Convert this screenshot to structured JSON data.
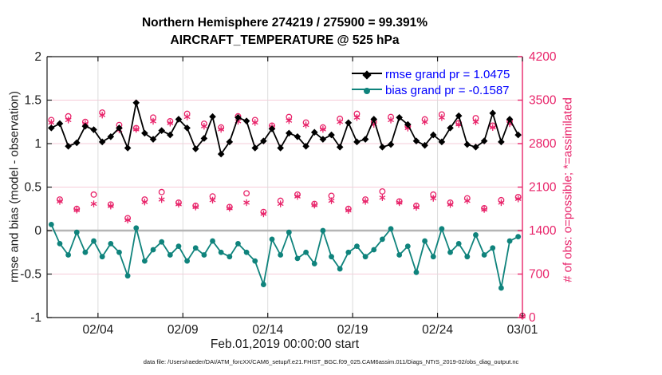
{
  "footer": "data file: /Users/raeder/DAI/ATM_forcXX/CAM6_setup/f.e21.FHIST_BGC.f09_025.CAM6assim.011/Diags_NTrS_2019-02/obs_diag_output.nc",
  "colors": {
    "rmse": "#000000",
    "bias": "#0f837c",
    "obs": "#e8246a",
    "legend_text": "#0000ff",
    "grid_vertical": "#dcdcdc",
    "grid_horizontal": "#f6ccd9",
    "zero_line": "#b5b5b5",
    "axis": "#1a1a1a"
  },
  "chart_data": {
    "type": "line",
    "title_line1": "Northern Hemisphere 274219 / 275900 = 99.391%",
    "title_line2": "AIRCRAFT_TEMPERATURE @ 525 hPa",
    "x_axis": {
      "label": "Feb.01,2019 00:00:00 start",
      "lim": [
        0,
        28
      ],
      "tick_days": [
        3,
        8,
        13,
        18,
        23,
        28
      ],
      "tick_labels": [
        "02/04",
        "02/09",
        "02/14",
        "02/19",
        "02/24",
        "03/01"
      ]
    },
    "y_left": {
      "label": "rmse and bias (model - observation)",
      "lim": [
        -1,
        2
      ],
      "tick_values": [
        2,
        1.5,
        1,
        0.5,
        0,
        -0.5,
        -1
      ],
      "tick_labels": [
        "2",
        "1.5",
        "1",
        "0.5",
        "0",
        "-0.5",
        "-1"
      ]
    },
    "y_right": {
      "label": "# of obs: o=possible; *=assimilated",
      "lim": [
        0,
        4200
      ],
      "tick_values": [
        4200,
        3500,
        2800,
        2100,
        1400,
        700,
        0
      ],
      "tick_labels": [
        "4200",
        "3500",
        "2800",
        "2100",
        "1400",
        "700",
        "0"
      ]
    },
    "grid": true,
    "legend": {
      "position": "top-right-inside",
      "entries": [
        {
          "series": "rmse",
          "label": "rmse grand pr = 1.0475"
        },
        {
          "series": "bias",
          "label": "bias grand pr = -0.1587"
        }
      ]
    },
    "days": [
      0.25,
      0.75,
      1.25,
      1.75,
      2.25,
      2.75,
      3.25,
      3.75,
      4.25,
      4.75,
      5.25,
      5.75,
      6.25,
      6.75,
      7.25,
      7.75,
      8.25,
      8.75,
      9.25,
      9.75,
      10.25,
      10.75,
      11.25,
      11.75,
      12.25,
      12.75,
      13.25,
      13.75,
      14.25,
      14.75,
      15.25,
      15.75,
      16.25,
      16.75,
      17.25,
      17.75,
      18.25,
      18.75,
      19.25,
      19.75,
      20.25,
      20.75,
      21.25,
      21.75,
      22.25,
      22.75,
      23.25,
      23.75,
      24.25,
      24.75,
      25.25,
      25.75,
      26.25,
      26.75,
      27.25,
      27.75,
      28.0
    ],
    "series": [
      {
        "id": "rmse",
        "name": "rmse grand pr",
        "axis": "left",
        "marker": "diamond",
        "color": "#000000",
        "values": [
          1.18,
          1.23,
          0.97,
          1.01,
          1.2,
          1.16,
          1.02,
          1.08,
          1.18,
          0.95,
          1.47,
          1.12,
          1.05,
          1.15,
          1.1,
          1.28,
          1.18,
          0.94,
          1.06,
          1.31,
          0.88,
          1.02,
          1.3,
          1.26,
          0.95,
          1.03,
          1.17,
          0.95,
          1.12,
          1.08,
          0.97,
          1.13,
          1.05,
          1.1,
          0.96,
          1.24,
          1.02,
          1.05,
          1.28,
          0.96,
          0.99,
          1.3,
          1.22,
          1.03,
          0.98,
          1.1,
          1.02,
          1.18,
          1.32,
          0.99,
          0.96,
          1.03,
          1.35,
          1.02,
          1.28,
          1.1,
          null
        ]
      },
      {
        "id": "bias",
        "name": "bias grand pr",
        "axis": "left",
        "marker": "filled-circle",
        "color": "#0f837c",
        "values": [
          0.07,
          -0.15,
          -0.28,
          -0.02,
          -0.25,
          -0.12,
          -0.3,
          -0.15,
          -0.25,
          -0.52,
          0.03,
          -0.35,
          -0.22,
          -0.13,
          -0.28,
          -0.18,
          -0.35,
          -0.2,
          -0.28,
          -0.12,
          -0.25,
          -0.3,
          -0.15,
          -0.25,
          -0.35,
          -0.62,
          -0.1,
          -0.28,
          -0.02,
          -0.32,
          -0.25,
          -0.38,
          0.0,
          -0.3,
          -0.44,
          -0.25,
          -0.18,
          -0.3,
          -0.22,
          -0.1,
          0.02,
          -0.28,
          -0.18,
          -0.48,
          -0.12,
          -0.3,
          0.02,
          -0.25,
          -0.15,
          -0.3,
          -0.05,
          -0.28,
          -0.2,
          -0.66,
          -0.12,
          -0.07,
          null
        ]
      },
      {
        "id": "possible",
        "name": "# of obs possible",
        "axis": "right",
        "marker": "open-circle",
        "color": "#e8246a",
        "values": [
          3180,
          1900,
          3240,
          1750,
          3150,
          1980,
          3300,
          1820,
          3100,
          1600,
          3050,
          1900,
          3220,
          2020,
          3160,
          1850,
          3280,
          1800,
          3120,
          1950,
          3060,
          1780,
          3240,
          2000,
          3180,
          1700,
          3090,
          1880,
          3230,
          1980,
          3140,
          1830,
          3060,
          1960,
          3200,
          1750,
          3280,
          1900,
          3150,
          2030,
          3230,
          1870,
          3080,
          1800,
          3190,
          1980,
          3270,
          1850,
          3130,
          1920,
          3210,
          1760,
          3090,
          1890,
          3170,
          1940,
          30
        ]
      },
      {
        "id": "assimilated",
        "name": "# of obs assimilated",
        "axis": "right",
        "marker": "asterisk",
        "color": "#e8246a",
        "values": [
          3140,
          1870,
          3180,
          1730,
          3120,
          1830,
          3260,
          1795,
          3020,
          1570,
          3030,
          1860,
          3160,
          1900,
          3130,
          1825,
          3230,
          1780,
          3080,
          1890,
          3030,
          1760,
          3160,
          1850,
          3140,
          1670,
          3070,
          1830,
          3170,
          1950,
          3100,
          1810,
          3030,
          1880,
          3150,
          1725,
          3220,
          1870,
          3110,
          1930,
          3180,
          1850,
          3050,
          1775,
          3150,
          1920,
          3220,
          1820,
          3110,
          1880,
          3150,
          1740,
          3060,
          1850,
          3120,
          1910,
          20
        ]
      }
    ]
  }
}
